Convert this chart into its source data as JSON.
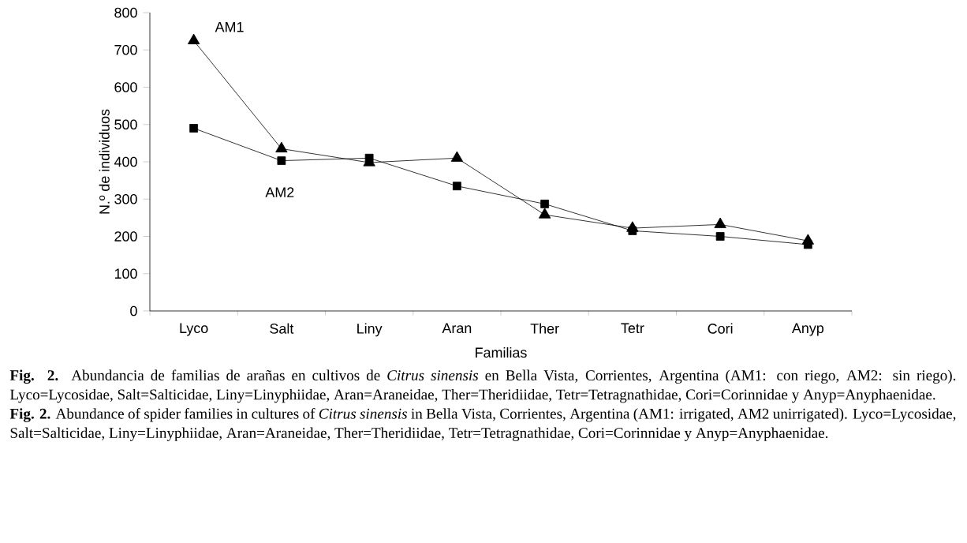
{
  "chart_data": {
    "type": "line",
    "xlabel": "Familias",
    "ylabel": "N.º de individuos",
    "categories": [
      "Lyco",
      "Salt",
      "Liny",
      "Aran",
      "Ther",
      "Tetr",
      "Cori",
      "Anyp"
    ],
    "series": [
      {
        "name": "AM1",
        "color": "#000000",
        "marker": "triangle",
        "values": [
          725,
          435,
          398,
          410,
          258,
          222,
          232,
          188
        ]
      },
      {
        "name": "AM2",
        "color": "#000000",
        "marker": "square",
        "values": [
          490,
          403,
          410,
          335,
          287,
          215,
          200,
          178
        ]
      }
    ],
    "ylim": [
      0,
      800
    ],
    "yticks": [
      0,
      100,
      200,
      300,
      400,
      500,
      600,
      700,
      800
    ],
    "grid": false,
    "legend": false,
    "line_style": "solid",
    "annotations": [
      "**Fig. 2.** Abundancia de familias de arañas en cultivos de *Citrus sinensis* en Bella Vista, Corrientes, Argentina (AM1: con riego, AM2: sin riego). Lyco=Lycosidae, Salt=Salticidae, Liny=Linyphiidae, Aran=Araneidae, Ther=Theridiidae, Tetr=Tetragnathidae, Cori=Corinnidae y Anyp=Anyphaenidae.",
      "**Fig. 2.** Abundance of spider families in cultures of *Citrus sinensis* in Bella Vista, Corrientes, Argentina (AM1: irrigated, AM2 unirrigated). Lyco=Lycosidae, Salt=Salticidae, Liny=Linyphiidae, Aran=Araneidae, Ther=Theridiidae, Tetr=Tetragnathidae, Cori=Corinnidae y Anyp=Anyphaenidae."
    ]
  }
}
